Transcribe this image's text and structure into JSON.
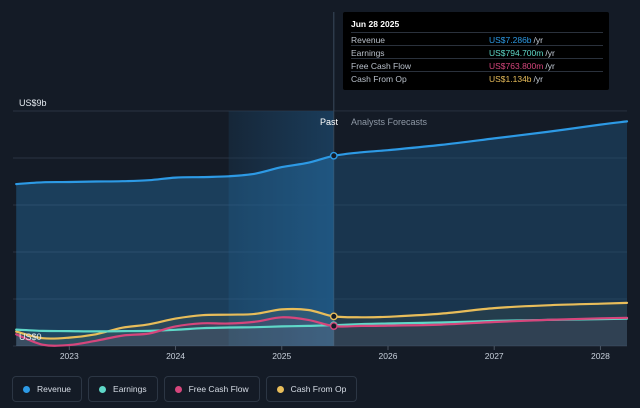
{
  "colors": {
    "background": "#141b26",
    "revenue": "#2d9ae5",
    "earnings": "#5fd8c8",
    "free_cash_flow": "#d6467c",
    "cash_from_op": "#e8bd5a",
    "past_highlight": "#1a3c5a",
    "grid": "#2a3341"
  },
  "tooltip": {
    "date": "Jun 28 2025",
    "rows": [
      {
        "label": "Revenue",
        "value": "US$7.286b",
        "unit": "/yr",
        "color": "#2d9ae5"
      },
      {
        "label": "Earnings",
        "value": "US$794.700m",
        "unit": "/yr",
        "color": "#5fd8c8"
      },
      {
        "label": "Free Cash Flow",
        "value": "US$763.800m",
        "unit": "/yr",
        "color": "#d6467c"
      },
      {
        "label": "Cash From Op",
        "value": "US$1.134b",
        "unit": "/yr",
        "color": "#e8bd5a"
      }
    ]
  },
  "legend": [
    {
      "label": "Revenue",
      "color": "#2d9ae5"
    },
    {
      "label": "Earnings",
      "color": "#5fd8c8"
    },
    {
      "label": "Free Cash Flow",
      "color": "#d6467c"
    },
    {
      "label": "Cash From Op",
      "color": "#e8bd5a"
    }
  ],
  "chart_data": {
    "type": "line",
    "y_top_label": "US$9b",
    "y_bottom_label": "US$0",
    "past_label": "Past",
    "forecast_label": "Analysts Forecasts",
    "x_ticks": [
      2023,
      2024,
      2025,
      2026,
      2027,
      2028
    ],
    "xlim": [
      2022.47,
      2028.25
    ],
    "ylim": [
      0,
      9.0
    ],
    "past_highlight_start": 2024.5,
    "divider_x": 2025.49,
    "grid": true,
    "legend_position": "bottom-left",
    "series": [
      {
        "name": "Revenue",
        "key": "revenue",
        "points": [
          [
            2022.5,
            6.2
          ],
          [
            2022.75,
            6.27
          ],
          [
            2023.0,
            6.28
          ],
          [
            2023.25,
            6.3
          ],
          [
            2023.5,
            6.31
          ],
          [
            2023.75,
            6.35
          ],
          [
            2024.0,
            6.45
          ],
          [
            2024.25,
            6.47
          ],
          [
            2024.5,
            6.5
          ],
          [
            2024.75,
            6.6
          ],
          [
            2025.0,
            6.85
          ],
          [
            2025.25,
            7.02
          ],
          [
            2025.49,
            7.286
          ],
          [
            2025.75,
            7.42
          ],
          [
            2026.0,
            7.5
          ],
          [
            2026.5,
            7.7
          ],
          [
            2027.0,
            7.95
          ],
          [
            2027.5,
            8.2
          ],
          [
            2028.0,
            8.48
          ],
          [
            2028.25,
            8.6
          ]
        ]
      },
      {
        "name": "Earnings",
        "key": "earnings",
        "points": [
          [
            2022.5,
            0.63
          ],
          [
            2022.75,
            0.58
          ],
          [
            2023.0,
            0.57
          ],
          [
            2023.25,
            0.56
          ],
          [
            2023.5,
            0.57
          ],
          [
            2023.75,
            0.58
          ],
          [
            2024.0,
            0.62
          ],
          [
            2024.25,
            0.68
          ],
          [
            2024.5,
            0.71
          ],
          [
            2024.75,
            0.72
          ],
          [
            2025.0,
            0.75
          ],
          [
            2025.25,
            0.77
          ],
          [
            2025.49,
            0.7947
          ],
          [
            2025.75,
            0.84
          ],
          [
            2026.0,
            0.86
          ],
          [
            2026.5,
            0.9
          ],
          [
            2027.0,
            0.96
          ],
          [
            2027.5,
            1.0
          ],
          [
            2028.0,
            1.03
          ],
          [
            2028.25,
            1.05
          ]
        ]
      },
      {
        "name": "Free Cash Flow",
        "key": "free_cash_flow",
        "points": [
          [
            2022.5,
            0.45
          ],
          [
            2022.75,
            0.05
          ],
          [
            2023.0,
            0.04
          ],
          [
            2023.25,
            0.2
          ],
          [
            2023.5,
            0.4
          ],
          [
            2023.75,
            0.48
          ],
          [
            2024.0,
            0.75
          ],
          [
            2024.25,
            0.87
          ],
          [
            2024.5,
            0.86
          ],
          [
            2024.75,
            0.93
          ],
          [
            2025.0,
            1.1
          ],
          [
            2025.25,
            1.0
          ],
          [
            2025.49,
            0.7638
          ],
          [
            2025.75,
            0.77
          ],
          [
            2026.0,
            0.78
          ],
          [
            2026.5,
            0.82
          ],
          [
            2027.0,
            0.92
          ],
          [
            2027.5,
            1.0
          ],
          [
            2028.0,
            1.06
          ],
          [
            2028.25,
            1.08
          ]
        ]
      },
      {
        "name": "Cash From Op",
        "key": "cash_from_op",
        "points": [
          [
            2022.5,
            0.55
          ],
          [
            2022.75,
            0.3
          ],
          [
            2023.0,
            0.32
          ],
          [
            2023.25,
            0.45
          ],
          [
            2023.5,
            0.7
          ],
          [
            2023.75,
            0.83
          ],
          [
            2024.0,
            1.05
          ],
          [
            2024.25,
            1.18
          ],
          [
            2024.5,
            1.2
          ],
          [
            2024.75,
            1.23
          ],
          [
            2025.0,
            1.4
          ],
          [
            2025.25,
            1.38
          ],
          [
            2025.49,
            1.134
          ],
          [
            2025.75,
            1.1
          ],
          [
            2026.0,
            1.12
          ],
          [
            2026.5,
            1.24
          ],
          [
            2027.0,
            1.45
          ],
          [
            2027.5,
            1.56
          ],
          [
            2028.0,
            1.62
          ],
          [
            2028.25,
            1.65
          ]
        ]
      }
    ]
  }
}
